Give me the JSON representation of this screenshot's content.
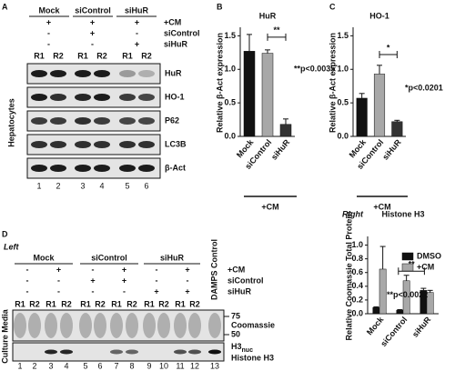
{
  "chart_data": [
    {
      "type": "bar",
      "letter": "B",
      "title": "HuR",
      "y_label": "Relative β-Act expression",
      "categories": [
        "Mock",
        "siControl",
        "siHuR"
      ],
      "values": [
        1.27,
        1.24,
        0.18
      ],
      "errors": [
        0.25,
        0.05,
        0.08
      ],
      "colors": [
        "#111111",
        "#a8a8a8",
        "#333333"
      ],
      "ylim": [
        0,
        1.6
      ],
      "yticks": [
        {
          "value": 0,
          "label": "0.0"
        },
        0.5,
        {
          "value": 1,
          "label": "1.0"
        },
        1.5
      ],
      "significance": "**",
      "p_value": "**p<0.0035",
      "treatment": "+CM"
    },
    {
      "type": "bar",
      "letter": "C",
      "title": "HO-1",
      "y_label": "Relative β-Act expression",
      "categories": [
        "Mock",
        "siControl",
        "siHuR"
      ],
      "values": [
        0.57,
        0.93,
        0.22
      ],
      "errors": [
        0.07,
        0.13,
        0.02
      ],
      "colors": [
        "#111111",
        "#a8a8a8",
        "#333333"
      ],
      "ylim": [
        0,
        1.6
      ],
      "yticks": [
        {
          "value": 0,
          "label": "0.0"
        },
        0.5,
        {
          "value": 1,
          "label": "1.0"
        },
        1.5
      ],
      "significance": "*",
      "p_value": "*p<0.0201",
      "treatment": "+CM"
    },
    {
      "type": "bar",
      "letter": "Right",
      "title": "Histone H3",
      "y_label": "Relative Coomassie Total Protein",
      "categories": [
        "Mock",
        "siControl",
        "siHuR"
      ],
      "series": [
        {
          "name": "DMSO",
          "color": "#111111",
          "values": [
            0.09,
            0.05,
            0.34
          ],
          "errors": [
            0.01,
            0.01,
            0.03
          ]
        },
        {
          "name": "+CM",
          "color": "#a8a8a8",
          "values": [
            0.65,
            0.48,
            0.31
          ],
          "errors": [
            0.33,
            0.08,
            0.03
          ]
        }
      ],
      "ylim": [
        0,
        1.1
      ],
      "yticks": [
        {
          "value": 0,
          "label": "0.0"
        },
        0.2,
        0.4,
        0.6,
        0.8,
        {
          "value": 1,
          "label": "1.0"
        }
      ],
      "significance": "**",
      "p_value": "**p<0.0022",
      "legend": "upper right"
    }
  ],
  "panel_a": {
    "letter": "A",
    "groups": [
      "Mock",
      "siControl",
      "siHuR"
    ],
    "conditions": [
      {
        "label": "+CM",
        "signs": [
          "+",
          "+",
          "+"
        ]
      },
      {
        "label": "siControl",
        "signs": [
          "-",
          "+",
          "-"
        ]
      },
      {
        "label": "siHuR",
        "signs": [
          "-",
          "-",
          "+"
        ]
      }
    ],
    "lanes": [
      "R1",
      "R2",
      "R1",
      "R2",
      "R1",
      "R2"
    ],
    "bands": [
      "HuR",
      "HO-1",
      "P62",
      "LC3B",
      "β-Act"
    ],
    "lane_numbers": [
      1,
      2,
      3,
      4,
      5,
      6
    ],
    "side_label": "Hepatocytes"
  },
  "panel_d": {
    "letter": "D",
    "subtitle": "Left",
    "groups": [
      "Mock",
      "siControl",
      "siHuR"
    ],
    "conditions": [
      {
        "label": "+CM",
        "signs": [
          "-",
          "+",
          "-",
          "+",
          "-",
          "+"
        ]
      },
      {
        "label": "siControl",
        "signs": [
          "-",
          "-",
          "+",
          "+",
          "-",
          "-"
        ]
      },
      {
        "label": "siHuR",
        "signs": [
          "-",
          "-",
          "-",
          "-",
          "+",
          "+"
        ]
      }
    ],
    "lanes": [
      "R1",
      "R2",
      "R1",
      "R2",
      "R1",
      "R2",
      "R1",
      "R2",
      "R1",
      "R2",
      "R1",
      "R2"
    ],
    "control_lane": "DAMPS Control",
    "markers": [
      "75",
      "50"
    ],
    "bands": [
      "Coomassie",
      "Histone H3"
    ],
    "h3nuc": [
      "H3",
      "nuc"
    ],
    "lane_numbers": [
      1,
      2,
      3,
      4,
      5,
      6,
      7,
      8,
      9,
      10,
      11,
      12,
      13
    ],
    "side_label": "Culture Media"
  }
}
